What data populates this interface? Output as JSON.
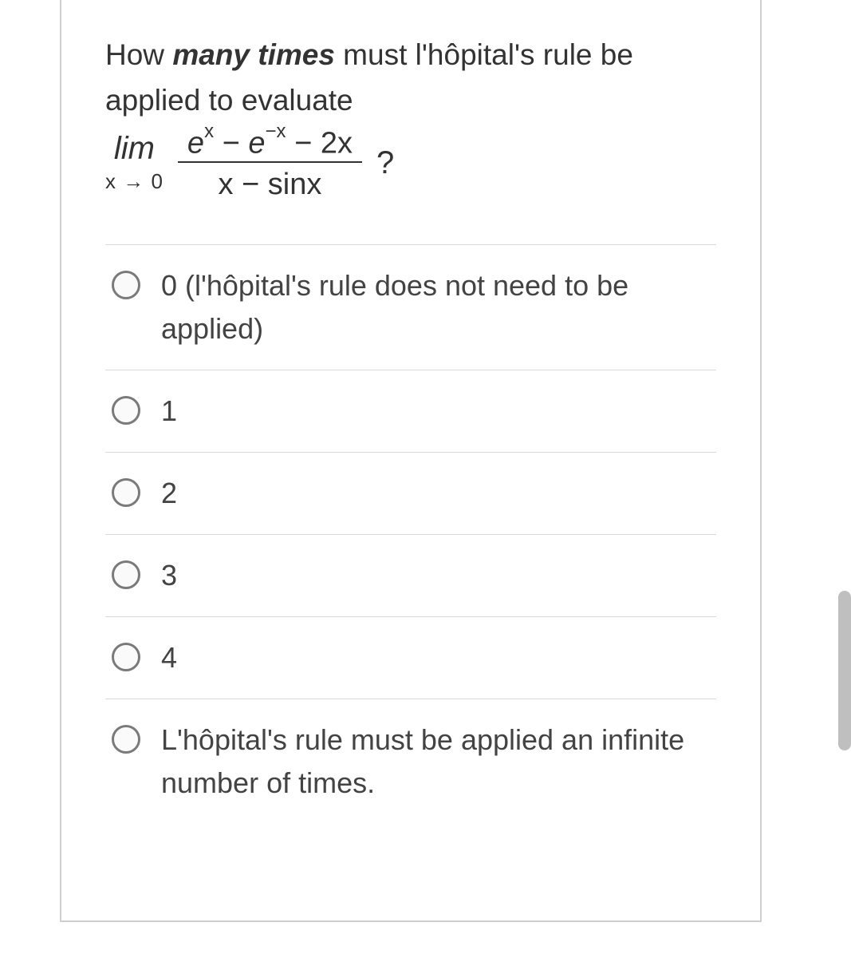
{
  "question": {
    "prefix": "How ",
    "bold_part": "many times",
    "suffix": " must l'hôpital's rule be applied to evaluate",
    "lim_label": "lim",
    "lim_sub": "x → 0",
    "numerator_html": "e<sup>x</sup> − e<sup>−x</sup> − 2x",
    "denominator": "x − sinx",
    "qmark": "?"
  },
  "options": [
    {
      "label": "0 (l'hôpital's rule does not need to be applied)"
    },
    {
      "label": "1"
    },
    {
      "label": "2"
    },
    {
      "label": "3"
    },
    {
      "label": "4"
    },
    {
      "label": "L'hôpital's rule must be applied an infinite number of times."
    }
  ],
  "colors": {
    "border": "#cfcfcf",
    "text": "#333333",
    "divider": "#d9d9d9",
    "radio_border": "#7a7a7a",
    "scrollbar": "#bfbfbf"
  }
}
